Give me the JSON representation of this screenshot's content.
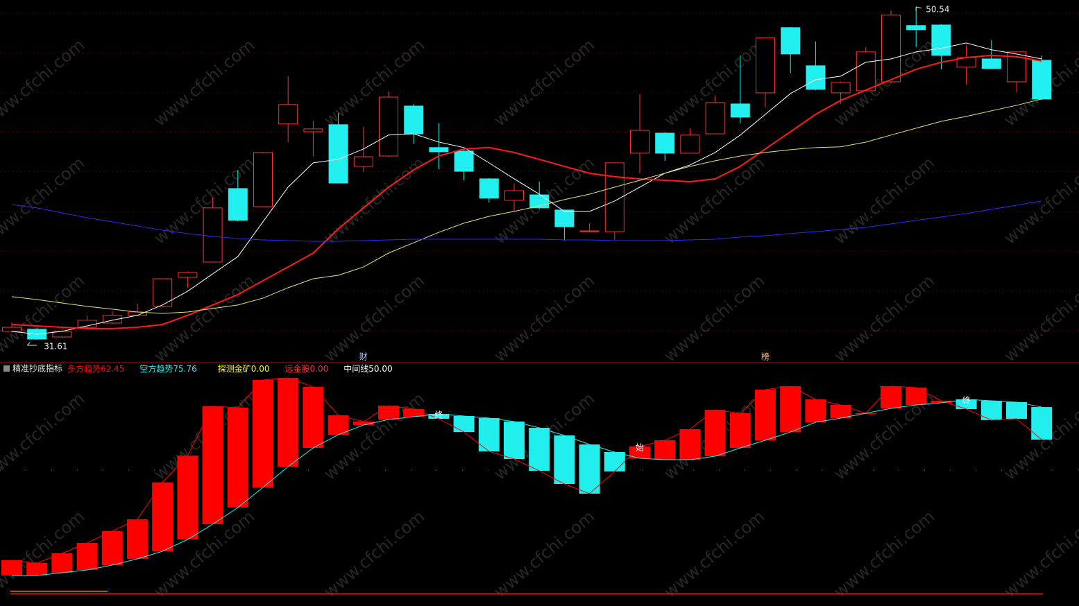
{
  "watermark": "www.cfchi.com",
  "chart_data": [
    {
      "type": "candlestick",
      "up_color": "#ff3030",
      "down_color": "#22f0f0",
      "open": [
        32.09,
        32.21,
        31.77,
        32.32,
        32.56,
        32.99,
        33.51,
        35.16,
        36.03,
        40.21,
        39.18,
        43.88,
        43.44,
        43.84,
        41.47,
        42.06,
        44.9,
        42.54,
        42.34,
        40.76,
        39.54,
        39.85,
        38.99,
        37.76,
        37.76,
        42.22,
        43.36,
        42.22,
        43.32,
        45.02,
        45.65,
        49.36,
        47.19,
        45.65,
        45.77,
        46.28,
        49.48,
        49.51,
        47.11,
        47.58,
        46.28,
        47.5
      ],
      "close": [
        32.32,
        31.65,
        32.09,
        32.72,
        32.99,
        33.19,
        35.08,
        35.44,
        39.11,
        38.4,
        42.26,
        44.98,
        43.6,
        40.52,
        42.02,
        45.41,
        43.32,
        42.3,
        41.19,
        39.66,
        40.09,
        39.11,
        38.04,
        37.8,
        41.67,
        43.52,
        42.22,
        43.25,
        45.1,
        44.27,
        48.77,
        47.86,
        45.85,
        46.24,
        47.98,
        50.07,
        49.24,
        47.78,
        47.66,
        47.03,
        47.98,
        45.3
      ],
      "high": [
        32.6,
        32.3,
        32.2,
        32.99,
        33.27,
        33.66,
        35.1,
        35.5,
        39.7,
        41.27,
        42.3,
        46.6,
        44.03,
        44.51,
        43.72,
        45.73,
        45.02,
        43.92,
        42.4,
        40.8,
        40.49,
        40.6,
        39.0,
        38.24,
        41.7,
        45.57,
        43.4,
        43.64,
        45.49,
        47.78,
        48.8,
        49.4,
        48.57,
        46.3,
        48.25,
        50.34,
        50.54,
        49.55,
        48.37,
        48.65,
        48.0,
        47.78
      ],
      "low": [
        32.01,
        31.61,
        31.7,
        32.25,
        32.5,
        32.95,
        33.45,
        34.57,
        36.0,
        38.35,
        39.15,
        42.85,
        42.06,
        40.5,
        41.16,
        42.0,
        42.77,
        41.31,
        40.68,
        39.42,
        38.91,
        39.05,
        37.25,
        37.76,
        37.29,
        41.08,
        41.79,
        42.2,
        43.3,
        43.92,
        44.82,
        46.79,
        45.8,
        45.02,
        45.7,
        46.2,
        48.25,
        46.99,
        46.12,
        47.0,
        45.69,
        45.25
      ],
      "series": [
        {
          "color": "#ffffff",
          "values": [
            32.09,
            31.93,
            32.09,
            32.4,
            32.72,
            33.0,
            33.59,
            34.37,
            35.36,
            36.34,
            38.32,
            40.29,
            41.67,
            41.87,
            42.46,
            43.25,
            43.32,
            42.85,
            42.54,
            41.67,
            40.76,
            39.89,
            38.91,
            38.91,
            39.5,
            40.29,
            41.08,
            41.55,
            42.26,
            43.25,
            44.43,
            45.61,
            46.4,
            46.6,
            47.39,
            47.58,
            47.98,
            48.18,
            48.49,
            48.1,
            47.86,
            47.58
          ]
        },
        {
          "color": "#ff1a1a",
          "values": [
            32.48,
            32.4,
            32.32,
            32.25,
            32.25,
            32.32,
            32.48,
            33.0,
            33.59,
            34.18,
            34.97,
            35.75,
            36.54,
            37.92,
            39.11,
            40.29,
            41.27,
            42.06,
            42.46,
            42.54,
            42.26,
            41.87,
            41.47,
            41.08,
            40.88,
            40.76,
            40.68,
            40.6,
            40.76,
            41.47,
            42.46,
            43.44,
            44.43,
            45.22,
            45.81,
            46.4,
            46.99,
            47.39,
            47.66,
            47.78,
            47.7,
            47.46
          ]
        },
        {
          "color": "#e6e66a",
          "values": [
            34.06,
            33.9,
            33.7,
            33.51,
            33.35,
            33.19,
            33.11,
            33.19,
            33.39,
            33.59,
            33.98,
            34.57,
            35.08,
            35.28,
            35.75,
            36.54,
            37.13,
            37.72,
            38.24,
            38.63,
            38.91,
            39.22,
            39.58,
            39.89,
            40.29,
            40.68,
            41.08,
            41.47,
            41.79,
            42.06,
            42.26,
            42.42,
            42.54,
            42.58,
            42.85,
            43.25,
            43.64,
            44.03,
            44.31,
            44.63,
            44.94,
            45.3
          ]
        },
        {
          "color": "#2a2aff",
          "values": [
            39.3,
            39.11,
            38.83,
            38.55,
            38.32,
            38.08,
            37.84,
            37.65,
            37.49,
            37.37,
            37.29,
            37.25,
            37.21,
            37.21,
            37.25,
            37.29,
            37.33,
            37.33,
            37.33,
            37.33,
            37.33,
            37.33,
            37.29,
            37.29,
            37.25,
            37.25,
            37.25,
            37.29,
            37.33,
            37.45,
            37.53,
            37.65,
            37.76,
            37.88,
            38.0,
            38.2,
            38.4,
            38.59,
            38.79,
            39.03,
            39.26,
            39.5
          ]
        }
      ],
      "events": [
        null,
        null,
        null,
        null,
        null,
        null,
        null,
        null,
        null,
        null,
        null,
        null,
        null,
        null,
        "财",
        null,
        null,
        null,
        null,
        null,
        null,
        null,
        null,
        null,
        null,
        null,
        null,
        null,
        null,
        null,
        "榜",
        null,
        null,
        null,
        null,
        null,
        null,
        null,
        null,
        null,
        null,
        null
      ],
      "ylim": [
        30.39,
        50.93
      ]
    },
    {
      "type": "range_bar",
      "title": "精准抄底指标",
      "series": [
        {
          "name": "多方趋势",
          "color": "#ff0000",
          "values": [
            13.17,
            12.04,
            16.01,
            20.25,
            25.07,
            29.89,
            45.01,
            55.95,
            76.06,
            75.5,
            86.83,
            87.68,
            83.99,
            72.38,
            69.83,
            76.35,
            74.93,
            70.96,
            65.58,
            57.65,
            54.53,
            49.72,
            44.33,
            40.37,
            49.43,
            59.63,
            62.18,
            66.71,
            74.65,
            73.23,
            82.86,
            84.28,
            78.9,
            76.63,
            73.23,
            84.28,
            83.71,
            78.33,
            74.93,
            70.4,
            70.96,
            62.45
          ]
        },
        {
          "name": "空方趋势",
          "color": "#22eeee",
          "values": [
            6.94,
            6.94,
            8.07,
            9.21,
            11.19,
            13.74,
            16.86,
            21.67,
            27.9,
            34.7,
            42.92,
            51.42,
            59.07,
            64.45,
            68.41,
            70.68,
            71.81,
            72.95,
            72.1,
            71.25,
            69.83,
            67.28,
            64.16,
            60.48,
            57.37,
            54.82,
            54.25,
            54.25,
            55.67,
            59.07,
            62.18,
            65.58,
            69.55,
            71.25,
            73.23,
            75.21,
            76.63,
            77.48,
            78.9,
            78.33,
            77.76,
            75.76
          ]
        }
      ],
      "indicators": [
        {
          "name": "探测金矿",
          "value": 0,
          "value_label": "0.00",
          "color": "#ffff00"
        },
        {
          "name": "远金股",
          "value": 0,
          "value_label": "0.00",
          "color": "#ff3030"
        },
        {
          "name": "中间线",
          "value": 50,
          "value_label": "50.00",
          "color": "#ffffff"
        }
      ],
      "signals": [
        null,
        null,
        null,
        null,
        null,
        null,
        null,
        null,
        null,
        null,
        null,
        null,
        null,
        null,
        null,
        null,
        null,
        "终",
        null,
        null,
        null,
        null,
        null,
        null,
        null,
        "始",
        null,
        null,
        null,
        null,
        null,
        null,
        null,
        null,
        null,
        null,
        null,
        null,
        "终",
        null,
        null,
        null
      ],
      "ylim": [
        -1.56,
        89.09
      ]
    }
  ]
}
